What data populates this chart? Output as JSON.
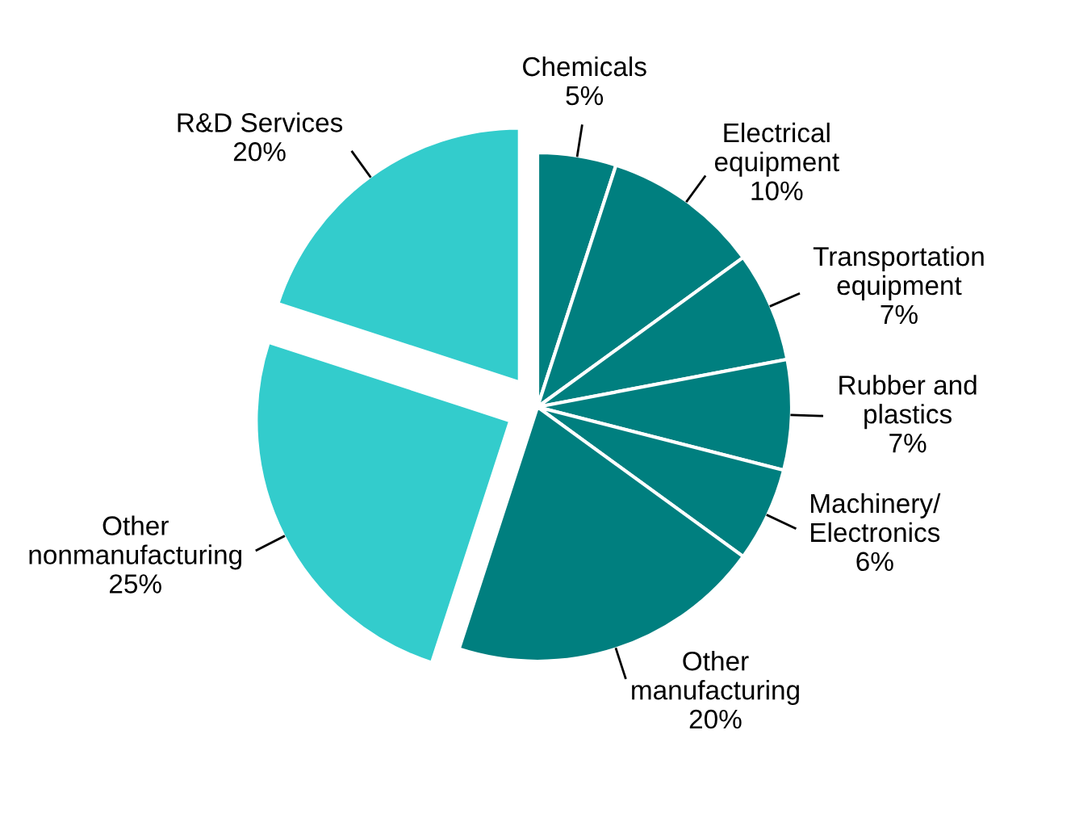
{
  "chart_data": {
    "type": "pie",
    "categories": [
      "Chemicals",
      "Electrical\nequipment",
      "Transportation\nequipment",
      "Rubber and\nplastics",
      "Machinery/\nElectronics",
      "Other\nmanufacturing",
      "Other\nnonmanufacturing",
      "R&D Services"
    ],
    "values": [
      5,
      10,
      7,
      7,
      6,
      20,
      25,
      20
    ],
    "value_labels": [
      "5%",
      "10%",
      "7%",
      "7%",
      "6%",
      "20%",
      "25%",
      "20%"
    ],
    "colors": [
      "#007f7f",
      "#007f7f",
      "#007f7f",
      "#007f7f",
      "#007f7f",
      "#007f7f",
      "#33cccc",
      "#33cccc"
    ],
    "legend": false
  }
}
